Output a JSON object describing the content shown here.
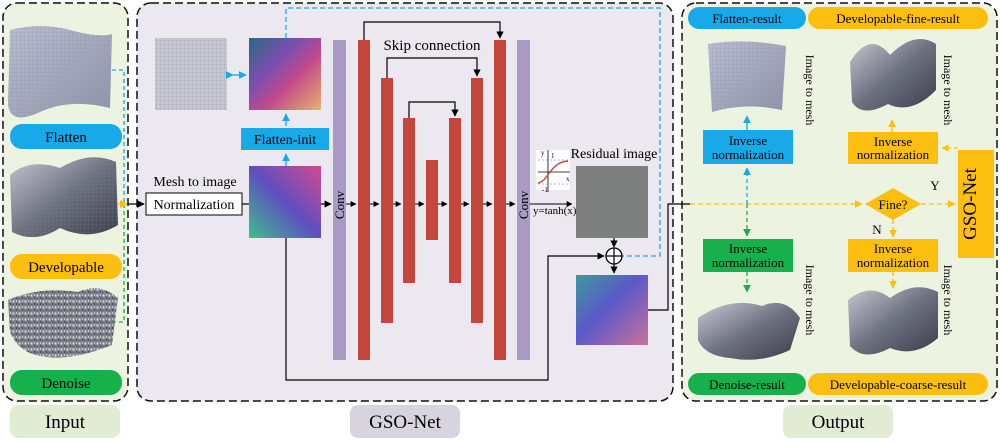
{
  "panels": {
    "input_caption": "Input",
    "gso_caption": "GSO-Net",
    "output_caption": "Output"
  },
  "input": {
    "flatten": "Flatten",
    "developable": "Developable",
    "denoise": "Denoise"
  },
  "network": {
    "mesh_to_image": "Mesh to image",
    "normalization": "Normalization",
    "flatten_init": "Flatten-init",
    "skip_connection": "Skip connection",
    "conv_left": "Conv",
    "conv_right": "Conv",
    "residual_image": "Residual image",
    "tanh": "y=tanh(x)",
    "tanh_axes": {
      "y": "y",
      "x": "x",
      "one": "1",
      "minus_one": "-1"
    }
  },
  "output": {
    "flatten_result": "Flatten-result",
    "dev_fine_result": "Developable-fine-result",
    "denoise_result": "Denoise-result",
    "dev_coarse_result": "Developable-coarse-result",
    "inv_norm_line1": "Inverse",
    "inv_norm_line2": "normalization",
    "image_to_mesh": "Image to mesh",
    "fine_q": "Fine?",
    "yes": "Y",
    "no": "N",
    "gso_net_side": "GSO-Net"
  },
  "colors": {
    "blue": "#17a9e8",
    "yellow": "#fcbf10",
    "green": "#16b14c",
    "red": "#c4473b",
    "purple": "#a99bc6",
    "panel_green": "#edf3e1",
    "panel_gray": "#ebe8ef",
    "caption_bg": "#e2ecd4",
    "caption_gray": "#d8d4de"
  }
}
